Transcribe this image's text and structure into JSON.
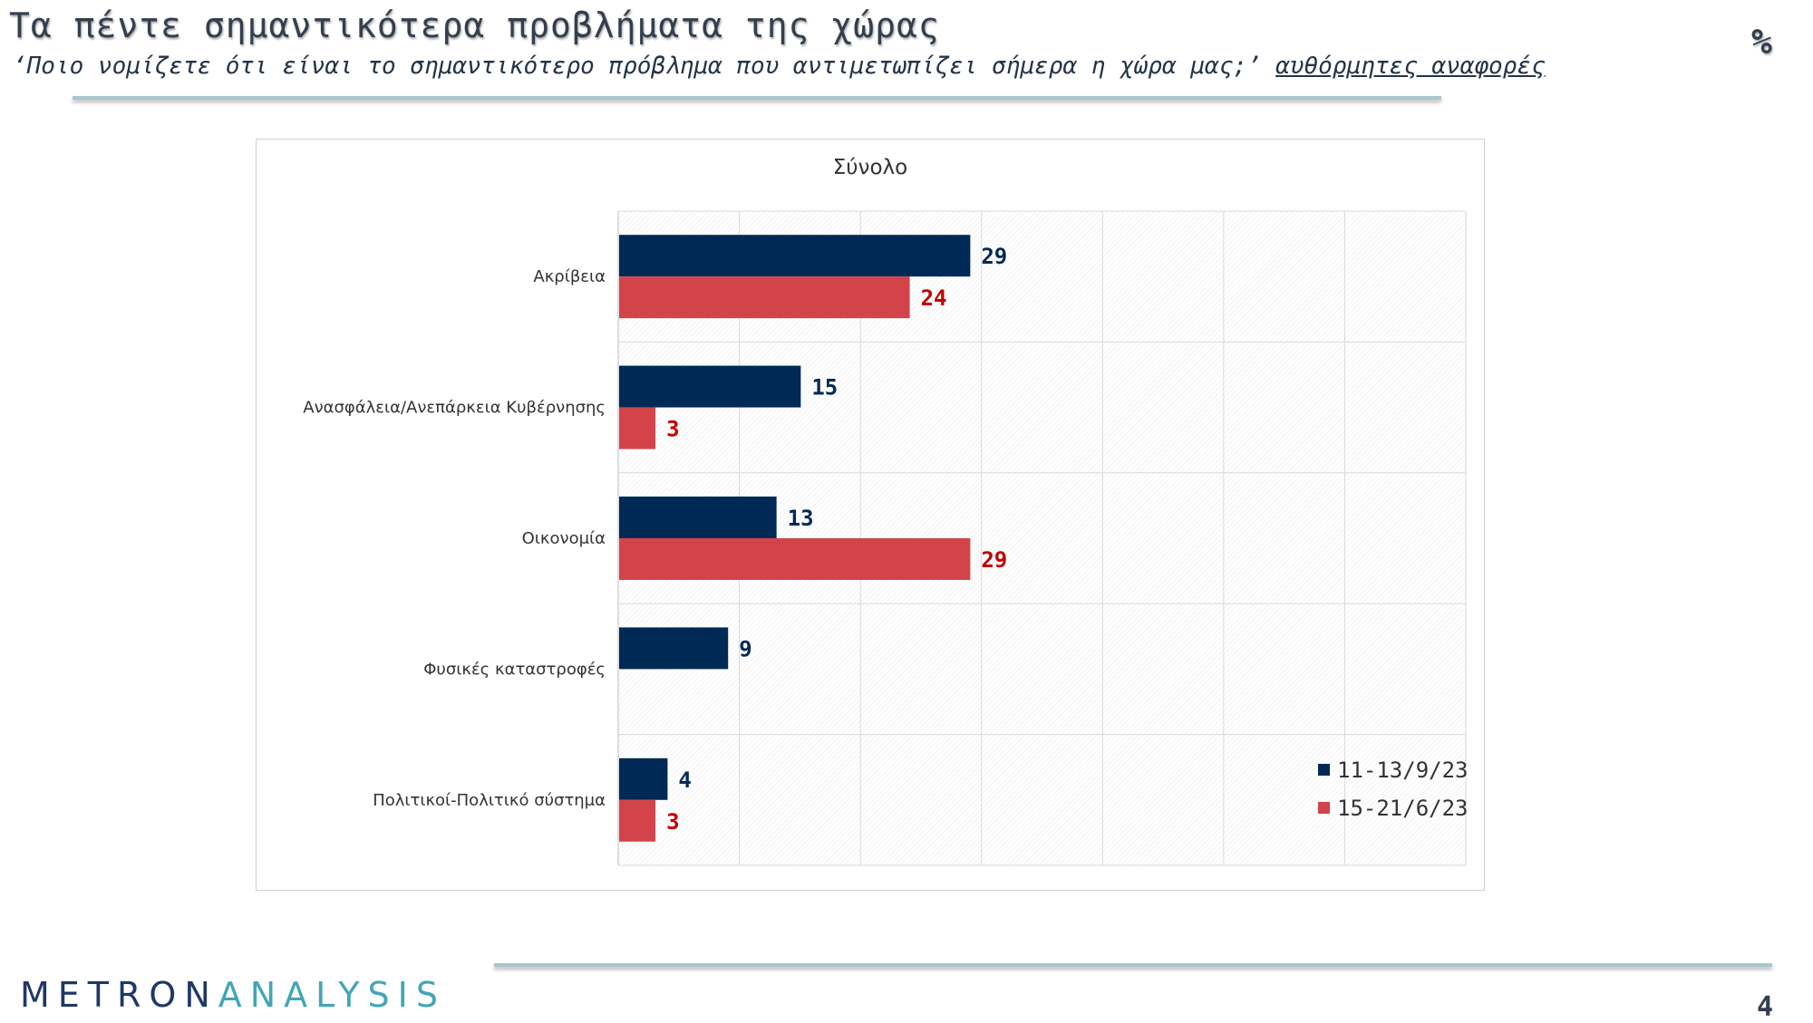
{
  "page": {
    "title": "Τα πέντε σημαντικότερα προβλήματα της χώρας",
    "subtitle_question": "‘Ποιο νομίζετε ότι είναι το σημαντικότερο πρόβλημα που αντιμετωπίζει σήμερα η χώρα μας;’",
    "subtitle_emphasis": "αυθόρμητες αναφορές",
    "unit_symbol": "%",
    "page_number": "4"
  },
  "brand": {
    "logo_part1": "METRON",
    "logo_part2": "ANALYSIS"
  },
  "colors": {
    "series_1": "#002a55",
    "series_2": "#d2444a",
    "label_1": "#002a55",
    "label_2": "#c00000"
  },
  "chart_data": {
    "type": "bar",
    "orientation": "horizontal",
    "title": "Σύνολο",
    "categories": [
      "Ακρίβεια",
      "Ανασφάλεια/Ανεπάρκεια Κυβέρνησης",
      "Οικονομία",
      "Φυσικές καταστροφές",
      "Πολιτικοί-Πολιτικό σύστημα"
    ],
    "series": [
      {
        "name": "11-13/9/23",
        "values": [
          29,
          15,
          13,
          9,
          4
        ]
      },
      {
        "name": "15-21/6/23",
        "values": [
          24,
          3,
          29,
          null,
          3
        ]
      }
    ],
    "xlim": [
      0,
      70
    ],
    "grid": true,
    "data_labels": true,
    "legend_position": "bottom-right"
  }
}
